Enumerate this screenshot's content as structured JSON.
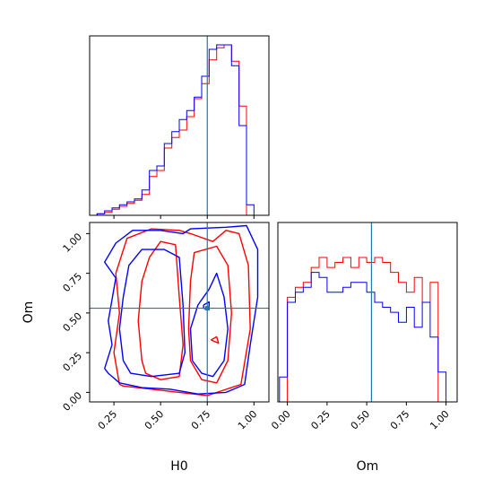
{
  "chart_data": {
    "type": "corner",
    "parameters": [
      "H0",
      "Om"
    ],
    "truths": {
      "H0": 0.75,
      "Om": 0.53
    },
    "truth_color": "#1f77b4",
    "series_colors": {
      "red": "#ff0000",
      "blue": "#0000ff"
    },
    "axis_labels": {
      "x_H0": "H0",
      "x_Om": "Om",
      "y_Om": "Om"
    },
    "ticks": {
      "H0": [
        0.25,
        0.5,
        0.75,
        1.0
      ],
      "H0_labels": [
        "0.25",
        "0.50",
        "0.75",
        "1.00"
      ],
      "Om": [
        0.0,
        0.25,
        0.5,
        0.75,
        1.0
      ],
      "Om_labels": [
        "0.00",
        "0.25",
        "0.50",
        "0.75",
        "1.00"
      ]
    },
    "ranges": {
      "H0": [
        0.12,
        1.08
      ],
      "Om": [
        -0.06,
        1.07
      ]
    },
    "hist_H0": {
      "edges": [
        0.12,
        0.16,
        0.2,
        0.24,
        0.28,
        0.32,
        0.36,
        0.4,
        0.44,
        0.48,
        0.52,
        0.56,
        0.6,
        0.64,
        0.68,
        0.72,
        0.76,
        0.8,
        0.84,
        0.88,
        0.92,
        0.96,
        1.0,
        1.04,
        1.08
      ],
      "red": [
        0,
        1,
        2,
        4,
        6,
        8,
        10,
        14,
        26,
        30,
        45,
        52,
        57,
        66,
        78,
        88,
        104,
        112,
        114,
        103,
        73,
        0,
        0,
        0
      ],
      "blue": [
        0,
        1,
        3,
        5,
        7,
        9,
        11,
        17,
        30,
        33,
        48,
        56,
        64,
        70,
        79,
        93,
        111,
        114,
        114,
        100,
        60,
        7,
        0,
        0
      ]
    },
    "hist_Om": {
      "edges": [
        -0.1,
        -0.05,
        0.0,
        0.05,
        0.1,
        0.15,
        0.2,
        0.25,
        0.3,
        0.35,
        0.4,
        0.45,
        0.5,
        0.55,
        0.6,
        0.65,
        0.7,
        0.75,
        0.8,
        0.85,
        0.9,
        0.95,
        1.0,
        1.05
      ],
      "red": [
        0,
        0,
        42,
        46,
        48,
        54,
        58,
        54,
        56,
        58,
        54,
        58,
        56,
        58,
        56,
        52,
        48,
        44,
        50,
        40,
        48,
        0,
        0
      ],
      "blue": [
        0,
        10,
        40,
        44,
        46,
        52,
        50,
        44,
        44,
        46,
        48,
        48,
        44,
        40,
        38,
        36,
        32,
        38,
        30,
        40,
        26,
        12,
        0
      ]
    },
    "contours": {
      "red": [
        [
          [
            0.28,
            0.05
          ],
          [
            0.25,
            0.25
          ],
          [
            0.28,
            0.5
          ],
          [
            0.26,
            0.75
          ],
          [
            0.32,
            0.97
          ],
          [
            0.45,
            1.03
          ],
          [
            0.6,
            1.02
          ],
          [
            0.66,
            1.0
          ],
          [
            0.78,
            0.95
          ],
          [
            0.85,
            1.02
          ],
          [
            0.92,
            1.0
          ],
          [
            0.97,
            0.8
          ],
          [
            0.98,
            0.4
          ],
          [
            0.93,
            0.05
          ],
          [
            0.75,
            -0.02
          ],
          [
            0.6,
            0.0
          ],
          [
            0.45,
            0.02
          ],
          [
            0.3,
            0.04
          ],
          [
            0.28,
            0.05
          ]
        ],
        [
          [
            0.4,
            0.2
          ],
          [
            0.38,
            0.45
          ],
          [
            0.4,
            0.7
          ],
          [
            0.44,
            0.85
          ],
          [
            0.5,
            0.95
          ],
          [
            0.58,
            0.93
          ],
          [
            0.6,
            0.6
          ],
          [
            0.62,
            0.3
          ],
          [
            0.6,
            0.1
          ],
          [
            0.5,
            0.08
          ],
          [
            0.42,
            0.12
          ],
          [
            0.4,
            0.2
          ]
        ],
        [
          [
            0.66,
            0.2
          ],
          [
            0.65,
            0.4
          ],
          [
            0.66,
            0.7
          ],
          [
            0.68,
            0.88
          ],
          [
            0.8,
            0.92
          ],
          [
            0.86,
            0.8
          ],
          [
            0.88,
            0.5
          ],
          [
            0.86,
            0.2
          ],
          [
            0.8,
            0.06
          ],
          [
            0.72,
            0.08
          ],
          [
            0.66,
            0.2
          ]
        ],
        [
          [
            0.77,
            0.33
          ],
          [
            0.81,
            0.31
          ],
          [
            0.8,
            0.35
          ],
          [
            0.77,
            0.33
          ]
        ]
      ],
      "blue": [
        [
          [
            0.2,
            0.15
          ],
          [
            0.24,
            0.3
          ],
          [
            0.22,
            0.45
          ],
          [
            0.26,
            0.72
          ],
          [
            0.2,
            0.82
          ],
          [
            0.26,
            0.94
          ],
          [
            0.35,
            1.02
          ],
          [
            0.5,
            1.02
          ],
          [
            0.62,
            1.0
          ],
          [
            0.66,
            1.03
          ],
          [
            0.85,
            1.04
          ],
          [
            0.96,
            1.05
          ],
          [
            1.02,
            0.9
          ],
          [
            1.02,
            0.6
          ],
          [
            0.98,
            0.3
          ],
          [
            0.95,
            0.05
          ],
          [
            0.85,
            0.0
          ],
          [
            0.7,
            -0.01
          ],
          [
            0.55,
            0.02
          ],
          [
            0.4,
            0.03
          ],
          [
            0.28,
            0.06
          ],
          [
            0.22,
            0.12
          ],
          [
            0.2,
            0.15
          ]
        ],
        [
          [
            0.3,
            0.2
          ],
          [
            0.28,
            0.4
          ],
          [
            0.3,
            0.6
          ],
          [
            0.33,
            0.8
          ],
          [
            0.4,
            0.9
          ],
          [
            0.52,
            0.9
          ],
          [
            0.6,
            0.85
          ],
          [
            0.62,
            0.55
          ],
          [
            0.63,
            0.25
          ],
          [
            0.6,
            0.12
          ],
          [
            0.45,
            0.1
          ],
          [
            0.34,
            0.12
          ],
          [
            0.3,
            0.2
          ]
        ],
        [
          [
            0.67,
            0.2
          ],
          [
            0.66,
            0.4
          ],
          [
            0.7,
            0.55
          ],
          [
            0.76,
            0.65
          ],
          [
            0.8,
            0.75
          ],
          [
            0.84,
            0.6
          ],
          [
            0.86,
            0.4
          ],
          [
            0.84,
            0.2
          ],
          [
            0.78,
            0.1
          ],
          [
            0.72,
            0.12
          ],
          [
            0.67,
            0.2
          ]
        ],
        [
          [
            0.73,
            0.55
          ],
          [
            0.76,
            0.57
          ],
          [
            0.76,
            0.52
          ],
          [
            0.73,
            0.53
          ],
          [
            0.73,
            0.55
          ]
        ]
      ]
    }
  }
}
